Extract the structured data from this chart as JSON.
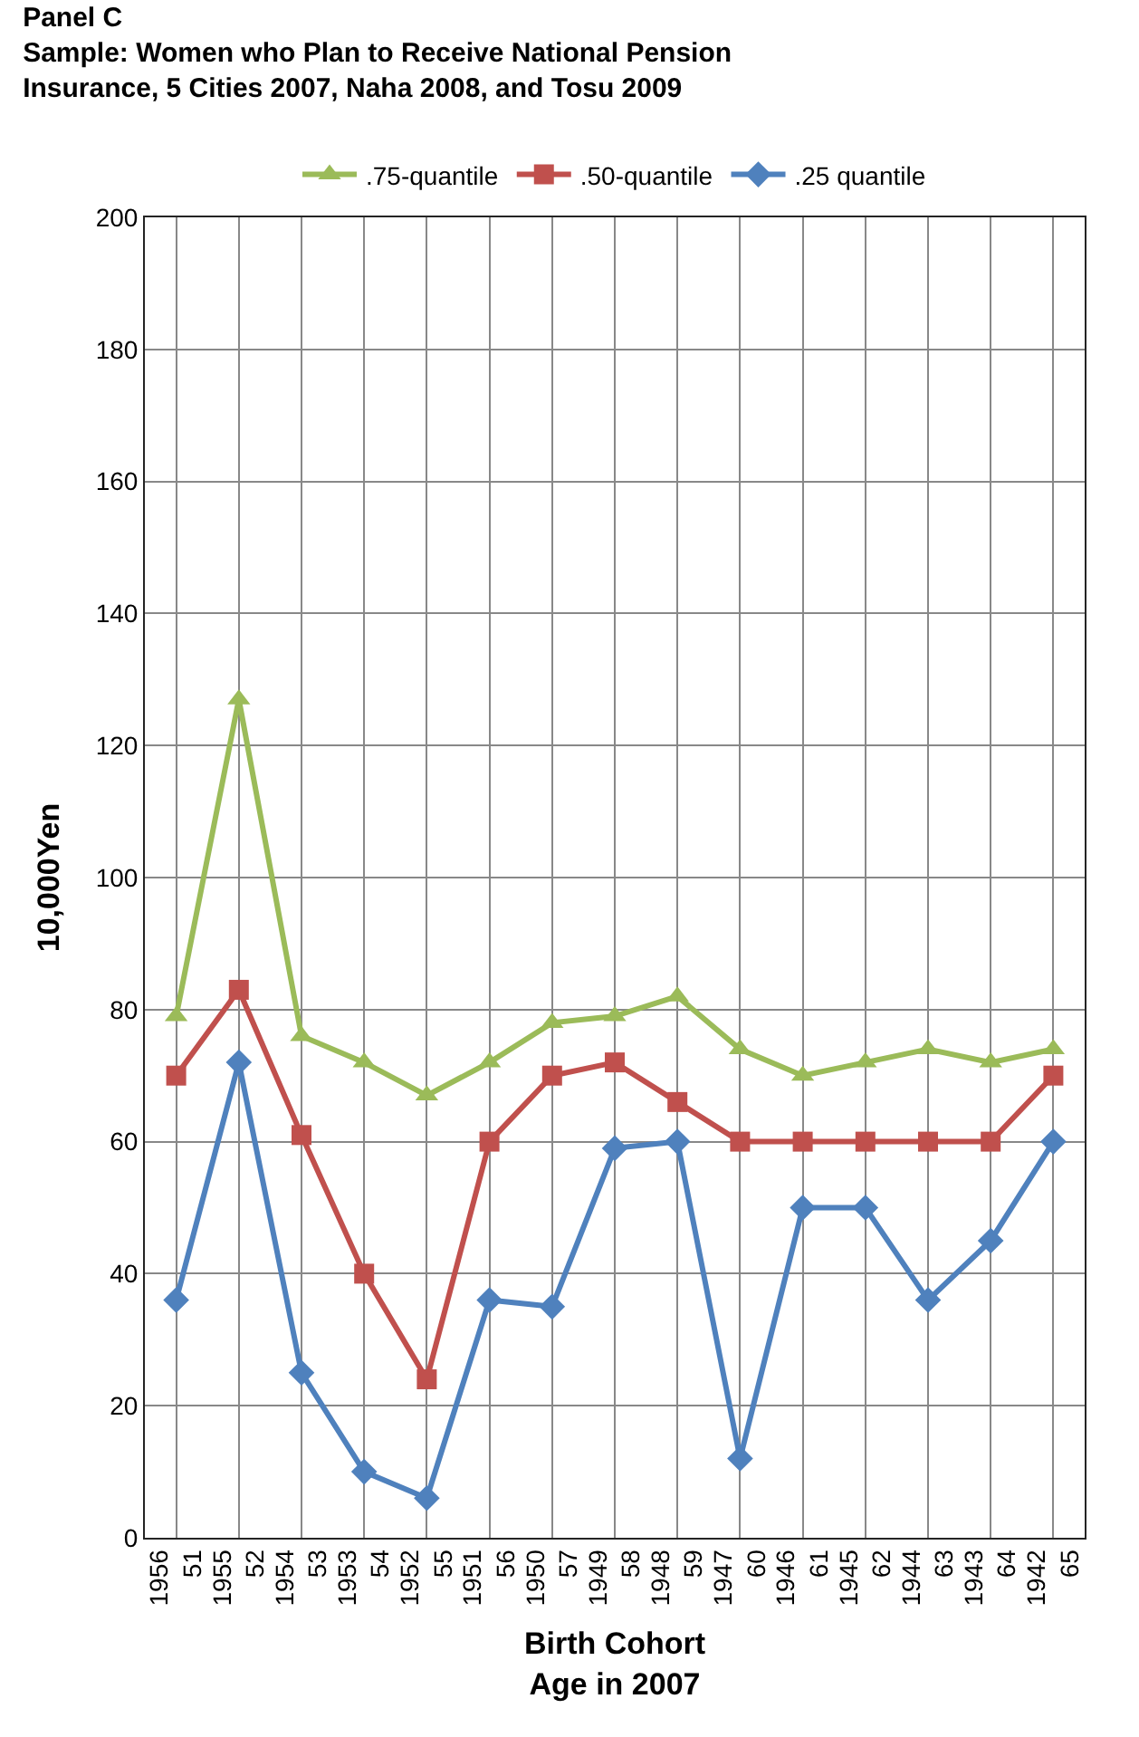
{
  "chart_data": {
    "type": "line",
    "title": "Panel C",
    "subtitle": "Sample: Women who Plan to Receive National Pension Insurance, 5 Cities 2007, Naha 2008, and Tosu 2009",
    "xlabel": "Birth Cohort\nAge in 2007",
    "ylabel": "10,000Yen",
    "categories": [
      "1956\n51",
      "1955\n52",
      "1954\n53",
      "1953\n54",
      "1952\n55",
      "1951\n56",
      "1950\n57",
      "1949\n58",
      "1948\n59",
      "1947\n60",
      "1946\n61",
      "1945\n62",
      "1944\n63",
      "1943\n64",
      "1942\n65"
    ],
    "series": [
      {
        "name": ".75-quantile",
        "color": "#9bbb59",
        "marker": "triangle",
        "values": [
          79,
          127,
          76,
          72,
          67,
          72,
          78,
          79,
          82,
          74,
          70,
          72,
          74,
          72,
          74
        ]
      },
      {
        "name": ".50-quantile",
        "color": "#c0504d",
        "marker": "square",
        "values": [
          70,
          83,
          61,
          40,
          24,
          60,
          70,
          72,
          66,
          60,
          60,
          60,
          60,
          60,
          70
        ]
      },
      {
        "name": ".25 quantile",
        "color": "#4f81bd",
        "marker": "diamond",
        "values": [
          36,
          72,
          25,
          10,
          6,
          36,
          35,
          59,
          60,
          12,
          50,
          50,
          36,
          45,
          60
        ]
      }
    ],
    "ylim": [
      0,
      200
    ],
    "yticks": [
      0,
      20,
      40,
      60,
      80,
      100,
      120,
      140,
      160,
      180,
      200
    ],
    "grid": true,
    "legend": "top"
  }
}
